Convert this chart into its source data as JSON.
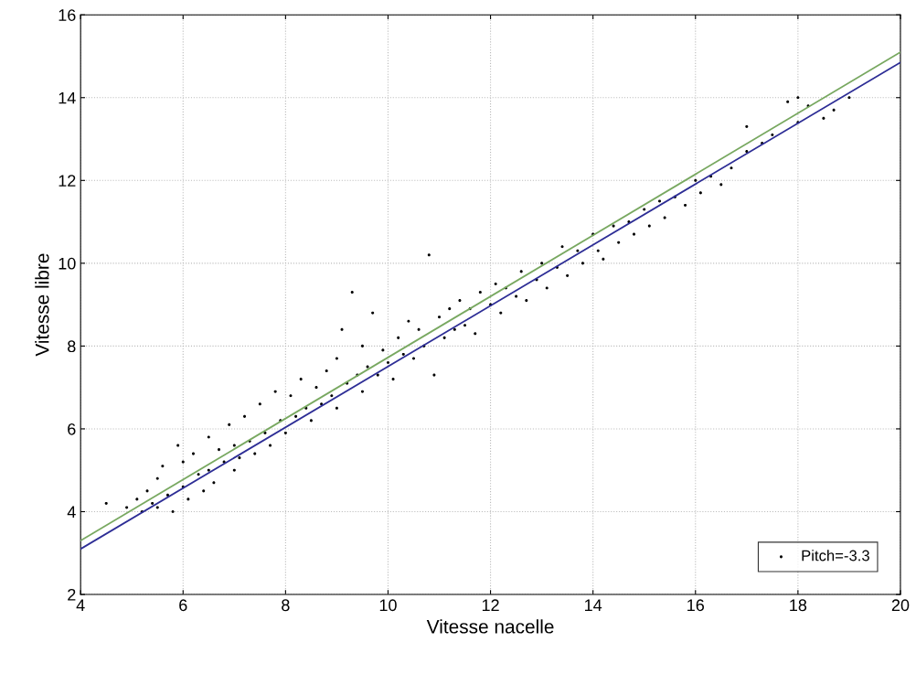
{
  "chart_data": {
    "type": "scatter",
    "xlabel": "Vitesse nacelle",
    "ylabel": "Vitesse libre",
    "xlim": [
      4,
      20
    ],
    "ylim": [
      2,
      16
    ],
    "xticks": [
      4,
      6,
      8,
      10,
      12,
      14,
      16,
      18,
      20
    ],
    "yticks": [
      2,
      4,
      6,
      8,
      10,
      12,
      14,
      16
    ],
    "grid": true,
    "legend": "lower right",
    "series": [
      {
        "name": "Pitch=-3.3",
        "color": "#000000",
        "marker": "circle",
        "x": [
          4.5,
          4.9,
          5.1,
          5.2,
          5.3,
          5.4,
          5.5,
          5.5,
          5.6,
          5.7,
          5.8,
          5.9,
          6.0,
          6.0,
          6.1,
          6.2,
          6.3,
          6.4,
          6.5,
          6.5,
          6.6,
          6.7,
          6.8,
          6.9,
          7.0,
          7.0,
          7.1,
          7.2,
          7.3,
          7.4,
          7.5,
          7.6,
          7.7,
          7.8,
          7.9,
          8.0,
          8.1,
          8.2,
          8.3,
          8.4,
          8.5,
          8.6,
          8.7,
          8.8,
          8.9,
          9.0,
          9.0,
          9.1,
          9.2,
          9.3,
          9.4,
          9.5,
          9.5,
          9.6,
          9.7,
          9.8,
          9.9,
          10.0,
          10.1,
          10.2,
          10.3,
          10.4,
          10.5,
          10.6,
          10.7,
          10.8,
          10.9,
          11.0,
          11.1,
          11.2,
          11.3,
          11.4,
          11.5,
          11.6,
          11.7,
          11.8,
          12.0,
          12.1,
          12.2,
          12.3,
          12.5,
          12.6,
          12.7,
          12.9,
          13.0,
          13.1,
          13.3,
          13.4,
          13.5,
          13.7,
          13.8,
          14.0,
          14.1,
          14.2,
          14.4,
          14.5,
          14.7,
          14.8,
          15.0,
          15.1,
          15.3,
          15.4,
          15.6,
          15.8,
          16.0,
          16.1,
          16.3,
          16.5,
          16.7,
          17.0,
          17.0,
          17.3,
          17.5,
          17.8,
          18.0,
          18.0,
          18.2,
          18.5,
          18.7,
          19.0
        ],
        "values": [
          4.2,
          4.1,
          4.3,
          4.0,
          4.5,
          4.2,
          4.1,
          4.8,
          5.1,
          4.4,
          4.0,
          5.6,
          4.6,
          5.2,
          4.3,
          5.4,
          4.9,
          4.5,
          5.8,
          5.0,
          4.7,
          5.5,
          5.2,
          6.1,
          5.0,
          5.6,
          5.3,
          6.3,
          5.7,
          5.4,
          6.6,
          5.9,
          5.6,
          6.9,
          6.2,
          5.9,
          6.8,
          6.3,
          7.2,
          6.5,
          6.2,
          7.0,
          6.6,
          7.4,
          6.8,
          6.5,
          7.7,
          8.4,
          7.1,
          9.3,
          7.3,
          6.9,
          8.0,
          7.5,
          8.8,
          7.3,
          7.9,
          7.6,
          7.2,
          8.2,
          7.8,
          8.6,
          7.7,
          8.4,
          8.0,
          10.2,
          7.3,
          8.7,
          8.2,
          8.9,
          8.4,
          9.1,
          8.5,
          8.9,
          8.3,
          9.3,
          9.0,
          9.5,
          8.8,
          9.4,
          9.2,
          9.8,
          9.1,
          9.6,
          10.0,
          9.4,
          9.9,
          10.4,
          9.7,
          10.3,
          10.0,
          10.7,
          10.3,
          10.1,
          10.9,
          10.5,
          11.0,
          10.7,
          11.3,
          10.9,
          11.5,
          11.1,
          11.6,
          11.4,
          12.0,
          11.7,
          12.1,
          11.9,
          12.3,
          12.7,
          13.3,
          12.9,
          13.1,
          13.9,
          13.4,
          14.0,
          13.8,
          13.5,
          13.7,
          14.0
        ]
      },
      {
        "type": "line",
        "marker": "none",
        "color": "#2e2e96",
        "x": [
          4,
          20
        ],
        "values": [
          3.1,
          14.85
        ]
      },
      {
        "type": "line",
        "marker": "none",
        "color": "#78a860",
        "x": [
          4,
          20
        ],
        "values": [
          3.3,
          15.1
        ]
      }
    ]
  }
}
